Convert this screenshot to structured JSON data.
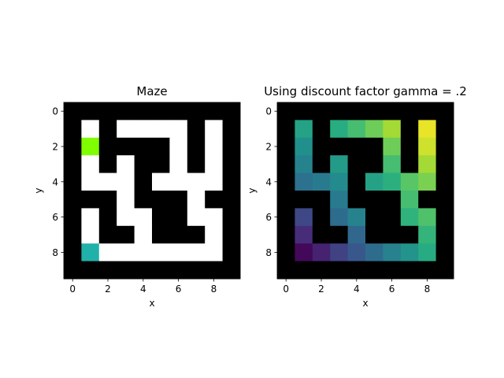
{
  "chart_data": [
    {
      "type": "heatmap",
      "title": "Maze",
      "xlabel": "x",
      "ylabel": "y",
      "xticks": [
        "0",
        "2",
        "4",
        "6",
        "8"
      ],
      "yticks": [
        "0",
        "2",
        "4",
        "6",
        "8"
      ],
      "xlim": [
        -0.5,
        9.5
      ],
      "ylim": [
        9.5,
        -0.5
      ],
      "y_inverted": true,
      "grid": false,
      "colors": {
        "wall": "#000000",
        "open": "#ffffff",
        "goal": "#7fff00",
        "start": "#20b2aa"
      },
      "cells": [
        [
          "W",
          "W",
          "W",
          "W",
          "W",
          "W",
          "W",
          "W",
          "W",
          "W"
        ],
        [
          "W",
          "O",
          "W",
          "O",
          "O",
          "O",
          "O",
          "W",
          "O",
          "W"
        ],
        [
          "W",
          "G",
          "W",
          "W",
          "W",
          "W",
          "O",
          "W",
          "O",
          "W"
        ],
        [
          "W",
          "O",
          "W",
          "O",
          "W",
          "W",
          "O",
          "W",
          "O",
          "W"
        ],
        [
          "W",
          "O",
          "O",
          "O",
          "W",
          "O",
          "O",
          "O",
          "O",
          "W"
        ],
        [
          "W",
          "W",
          "W",
          "O",
          "W",
          "W",
          "W",
          "O",
          "W",
          "W"
        ],
        [
          "W",
          "O",
          "W",
          "O",
          "O",
          "W",
          "W",
          "O",
          "O",
          "W"
        ],
        [
          "W",
          "O",
          "W",
          "W",
          "O",
          "W",
          "W",
          "W",
          "O",
          "W"
        ],
        [
          "W",
          "S",
          "O",
          "O",
          "O",
          "O",
          "O",
          "O",
          "O",
          "W"
        ],
        [
          "W",
          "W",
          "W",
          "W",
          "W",
          "W",
          "W",
          "W",
          "W",
          "W"
        ]
      ]
    },
    {
      "type": "heatmap",
      "title": "Using discount factor gamma = .2",
      "xlabel": "x",
      "ylabel": "y",
      "xticks": [
        "0",
        "2",
        "4",
        "6",
        "8"
      ],
      "yticks": [
        "0",
        "2",
        "4",
        "6",
        "8"
      ],
      "xlim": [
        -0.5,
        9.5
      ],
      "ylim": [
        9.5,
        -0.5
      ],
      "y_inverted": true,
      "grid": false,
      "colormap": "viridis",
      "wall_color": "#000000",
      "value_range": [
        0,
        1
      ],
      "values": [
        [
          null,
          null,
          null,
          null,
          null,
          null,
          null,
          null,
          null,
          null
        ],
        [
          null,
          0.58,
          null,
          0.63,
          0.7,
          0.78,
          0.87,
          null,
          0.97,
          null
        ],
        [
          null,
          0.5,
          null,
          null,
          null,
          null,
          0.78,
          null,
          0.93,
          null
        ],
        [
          null,
          0.45,
          null,
          0.55,
          null,
          null,
          0.7,
          null,
          0.87,
          null
        ],
        [
          null,
          0.38,
          0.42,
          0.48,
          null,
          0.58,
          0.64,
          0.74,
          0.8,
          null
        ],
        [
          null,
          null,
          null,
          0.42,
          null,
          null,
          null,
          0.7,
          null,
          null
        ],
        [
          null,
          0.22,
          null,
          0.36,
          0.45,
          null,
          null,
          0.65,
          0.72,
          null
        ],
        [
          null,
          0.13,
          null,
          null,
          0.34,
          null,
          null,
          null,
          0.66,
          null
        ],
        [
          null,
          0.02,
          0.1,
          0.2,
          0.28,
          0.36,
          0.44,
          0.52,
          0.62,
          null
        ],
        [
          null,
          null,
          null,
          null,
          null,
          null,
          null,
          null,
          null,
          null
        ]
      ]
    }
  ]
}
